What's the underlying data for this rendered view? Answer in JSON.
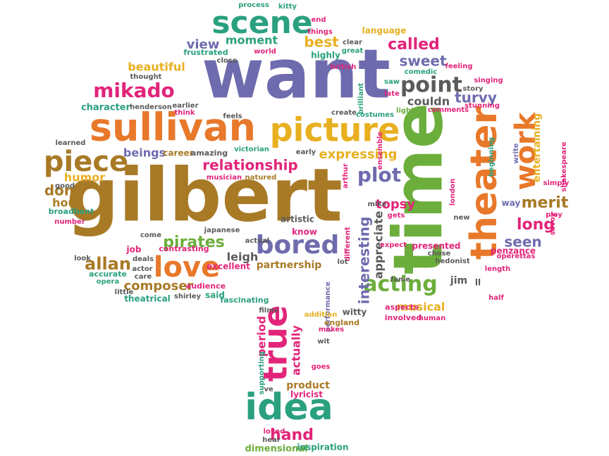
{
  "palette": {
    "purple": "#6E6BAE",
    "orange": "#E8782A",
    "brown": "#A87A26",
    "pink": "#E2247A",
    "green": "#6CAE3C",
    "teal": "#2AA07F",
    "gold": "#E8B020",
    "grey": "#5A5A5A"
  },
  "words": [
    {
      "text": "want",
      "color": "purple"
    },
    {
      "text": "gilbert",
      "color": "brown"
    },
    {
      "text": "time",
      "color": "green"
    },
    {
      "text": "theater",
      "color": "orange"
    },
    {
      "text": "sullivan",
      "color": "orange"
    },
    {
      "text": "picture",
      "color": "gold"
    },
    {
      "text": "scene",
      "color": "teal"
    },
    {
      "text": "idea",
      "color": "teal"
    },
    {
      "text": "love",
      "color": "orange"
    },
    {
      "text": "bored",
      "color": "purple"
    },
    {
      "text": "true",
      "color": "pink"
    },
    {
      "text": "work",
      "color": "orange"
    },
    {
      "text": "piece",
      "color": "brown"
    },
    {
      "text": "mikado",
      "color": "pink"
    },
    {
      "text": "point",
      "color": "grey"
    },
    {
      "text": "acting",
      "color": "green"
    },
    {
      "text": "called",
      "color": "pink"
    },
    {
      "text": "plot",
      "color": "purple"
    },
    {
      "text": "pirates",
      "color": "green"
    },
    {
      "text": "allan",
      "color": "brown"
    },
    {
      "text": "relationship",
      "color": "pink"
    },
    {
      "text": "expressing",
      "color": "gold"
    },
    {
      "text": "composer",
      "color": "brown"
    },
    {
      "text": "merit",
      "color": "brown"
    },
    {
      "text": "topsy",
      "color": "pink"
    },
    {
      "text": "long",
      "color": "pink"
    },
    {
      "text": "seen",
      "color": "purple"
    },
    {
      "text": "hand",
      "color": "pink"
    },
    {
      "text": "beautiful",
      "color": "gold"
    },
    {
      "text": "moment",
      "color": "teal"
    },
    {
      "text": "best",
      "color": "gold"
    },
    {
      "text": "sweet",
      "color": "purple"
    },
    {
      "text": "view",
      "color": "purple"
    },
    {
      "text": "turvy",
      "color": "purple"
    },
    {
      "text": "couldn",
      "color": "grey"
    },
    {
      "text": "beings",
      "color": "purple"
    },
    {
      "text": "humor",
      "color": "gold"
    },
    {
      "text": "don",
      "color": "brown"
    },
    {
      "text": "hour",
      "color": "brown"
    },
    {
      "text": "leigh",
      "color": "grey"
    },
    {
      "text": "interesting",
      "color": "purple"
    },
    {
      "text": "entertaining",
      "color": "gold"
    },
    {
      "text": "actually",
      "color": "pink"
    },
    {
      "text": "period",
      "color": "pink"
    },
    {
      "text": "musical",
      "color": "gold"
    },
    {
      "text": "product",
      "color": "brown"
    },
    {
      "text": "appreciate",
      "color": "grey"
    },
    {
      "text": "partnership",
      "color": "brown"
    },
    {
      "text": "character",
      "color": "teal"
    },
    {
      "text": "frustrated",
      "color": "teal"
    },
    {
      "text": "language",
      "color": "gold"
    },
    {
      "text": "process",
      "color": "teal"
    },
    {
      "text": "kitty",
      "color": "teal"
    },
    {
      "text": "end",
      "color": "pink"
    },
    {
      "text": "things",
      "color": "pink"
    },
    {
      "text": "clear",
      "color": "grey"
    },
    {
      "text": "highly",
      "color": "teal"
    },
    {
      "text": "great",
      "color": "teal"
    },
    {
      "text": "world",
      "color": "pink"
    },
    {
      "text": "british",
      "color": "pink"
    },
    {
      "text": "close",
      "color": "grey"
    },
    {
      "text": "thought",
      "color": "grey"
    },
    {
      "text": "comedic",
      "color": "teal"
    },
    {
      "text": "feeling",
      "color": "pink"
    },
    {
      "text": "singing",
      "color": "pink"
    },
    {
      "text": "brilliant",
      "color": "teal"
    },
    {
      "text": "saw",
      "color": "teal"
    },
    {
      "text": "late",
      "color": "pink"
    },
    {
      "text": "story",
      "color": "grey"
    },
    {
      "text": "stunning",
      "color": "pink"
    },
    {
      "text": "henderson",
      "color": "grey"
    },
    {
      "text": "earlier",
      "color": "grey"
    },
    {
      "text": "think",
      "color": "pink"
    },
    {
      "text": "create",
      "color": "grey"
    },
    {
      "text": "costumes",
      "color": "teal"
    },
    {
      "text": "light",
      "color": "green"
    },
    {
      "text": "comments",
      "color": "pink"
    },
    {
      "text": "feels",
      "color": "grey"
    },
    {
      "text": "learned",
      "color": "grey"
    },
    {
      "text": "career",
      "color": "brown"
    },
    {
      "text": "amazing",
      "color": "grey"
    },
    {
      "text": "victorian",
      "color": "teal"
    },
    {
      "text": "early",
      "color": "grey"
    },
    {
      "text": "ensemble",
      "color": "pink"
    },
    {
      "text": "beginning",
      "color": "teal"
    },
    {
      "text": "write",
      "color": "purple"
    },
    {
      "text": "shakespeare",
      "color": "pink"
    },
    {
      "text": "simply",
      "color": "pink"
    },
    {
      "text": "good",
      "color": "grey"
    },
    {
      "text": "musician",
      "color": "pink"
    },
    {
      "text": "natured",
      "color": "brown"
    },
    {
      "text": "arthur",
      "color": "pink"
    },
    {
      "text": "london",
      "color": "pink"
    },
    {
      "text": "way",
      "color": "purple"
    },
    {
      "text": "play",
      "color": "pink"
    },
    {
      "text": "savoy",
      "color": "pink"
    },
    {
      "text": "broadbent",
      "color": "teal"
    },
    {
      "text": "number",
      "color": "pink"
    },
    {
      "text": "artistic",
      "color": "grey"
    },
    {
      "text": "japanese",
      "color": "grey"
    },
    {
      "text": "mike",
      "color": "grey"
    },
    {
      "text": "gets",
      "color": "pink"
    },
    {
      "text": "new",
      "color": "grey"
    },
    {
      "text": "come",
      "color": "grey"
    },
    {
      "text": "know",
      "color": "pink"
    },
    {
      "text": "actual",
      "color": "grey"
    },
    {
      "text": "different",
      "color": "pink"
    },
    {
      "text": "expect",
      "color": "pink"
    },
    {
      "text": "presented",
      "color": "pink"
    },
    {
      "text": "penzance",
      "color": "pink"
    },
    {
      "text": "job",
      "color": "pink"
    },
    {
      "text": "contrasting",
      "color": "pink"
    },
    {
      "text": "chose",
      "color": "grey"
    },
    {
      "text": "operettas",
      "color": "pink"
    },
    {
      "text": "deals",
      "color": "grey"
    },
    {
      "text": "actor",
      "color": "grey"
    },
    {
      "text": "excellent",
      "color": "pink"
    },
    {
      "text": "look",
      "color": "grey"
    },
    {
      "text": "care",
      "color": "grey"
    },
    {
      "text": "accurate",
      "color": "teal"
    },
    {
      "text": "opera",
      "color": "teal"
    },
    {
      "text": "lot",
      "color": "grey"
    },
    {
      "text": "hedonist",
      "color": "grey"
    },
    {
      "text": "length",
      "color": "pink"
    },
    {
      "text": "little",
      "color": "grey"
    },
    {
      "text": "audience",
      "color": "pink"
    },
    {
      "text": "fame",
      "color": "grey"
    },
    {
      "text": "jim",
      "color": "grey"
    },
    {
      "text": "ll",
      "color": "grey"
    },
    {
      "text": "theatrical",
      "color": "teal"
    },
    {
      "text": "shirley",
      "color": "grey"
    },
    {
      "text": "said",
      "color": "teal"
    },
    {
      "text": "fascinating",
      "color": "teal"
    },
    {
      "text": "films",
      "color": "grey"
    },
    {
      "text": "performance",
      "color": "purple"
    },
    {
      "text": "addition",
      "color": "gold"
    },
    {
      "text": "witty",
      "color": "grey"
    },
    {
      "text": "aspects",
      "color": "pink"
    },
    {
      "text": "half",
      "color": "pink"
    },
    {
      "text": "england",
      "color": "brown"
    },
    {
      "text": "involved",
      "color": "pink"
    },
    {
      "text": "human",
      "color": "pink"
    },
    {
      "text": "makes",
      "color": "pink"
    },
    {
      "text": "wit",
      "color": "grey"
    },
    {
      "text": "supporting",
      "color": "teal"
    },
    {
      "text": "goes",
      "color": "pink"
    },
    {
      "text": "lyricist",
      "color": "pink"
    },
    {
      "text": "ve",
      "color": "grey"
    },
    {
      "text": "loved",
      "color": "pink"
    },
    {
      "text": "hear",
      "color": "grey"
    },
    {
      "text": "dimensional",
      "color": "green"
    },
    {
      "text": "inspiration",
      "color": "teal"
    }
  ]
}
